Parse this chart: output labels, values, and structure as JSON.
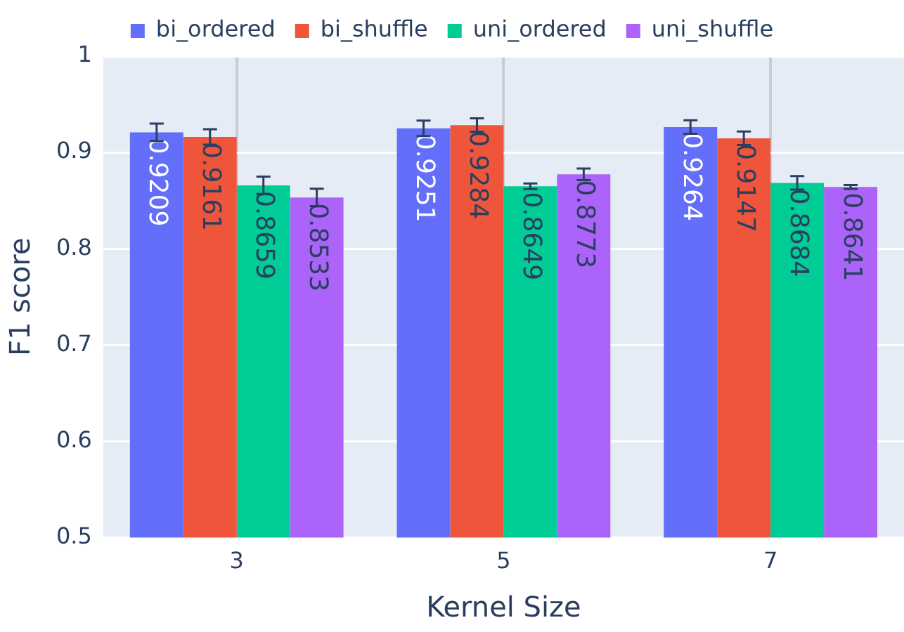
{
  "chart_data": {
    "type": "bar",
    "xlabel": "Kernel Size",
    "ylabel": "F1 score",
    "categories": [
      "3",
      "5",
      "7"
    ],
    "series": [
      {
        "name": "bi_ordered",
        "color": "#636efa",
        "values": [
          0.9209,
          0.9251,
          0.9264
        ],
        "errors": [
          0.009,
          0.008,
          0.007
        ]
      },
      {
        "name": "bi_shuffle",
        "color": "#ef553b",
        "values": [
          0.9161,
          0.9284,
          0.9147
        ],
        "errors": [
          0.008,
          0.007,
          0.007
        ]
      },
      {
        "name": "uni_ordered",
        "color": "#00cc96",
        "values": [
          0.8659,
          0.8649,
          0.8684
        ],
        "errors": [
          0.009,
          0.003,
          0.007
        ]
      },
      {
        "name": "uni_shuffle",
        "color": "#ab63fa",
        "values": [
          0.8533,
          0.8773,
          0.8641
        ],
        "errors": [
          0.009,
          0.006,
          0.002
        ]
      }
    ],
    "ylim": [
      0.5,
      1
    ],
    "yticks": [
      0.5,
      0.6,
      0.7,
      0.8,
      0.9,
      1
    ],
    "grid": true,
    "legend": "top",
    "data_labels": true
  }
}
